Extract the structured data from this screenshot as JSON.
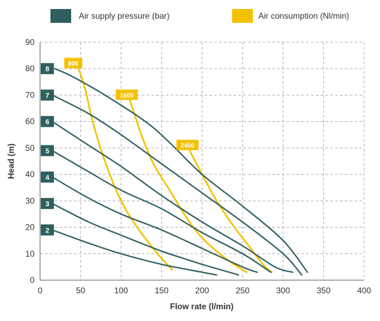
{
  "chart_data": {
    "type": "line",
    "title": "",
    "xlabel": "Flow rate (l/min)",
    "ylabel": "Head (m)",
    "xlim": [
      0,
      400
    ],
    "ylim": [
      0,
      90
    ],
    "x_ticks": [
      "0",
      "50",
      "100",
      "150",
      "200",
      "250",
      "300",
      "350",
      "400"
    ],
    "y_ticks": [
      "0",
      "10",
      "20",
      "30",
      "40",
      "50",
      "60",
      "70",
      "80",
      "90"
    ],
    "grid": true,
    "legend_position": "top",
    "legend": [
      {
        "label": "Air supply pressure (bar)",
        "color": "#2f5f5f"
      },
      {
        "label": "Air consumption (Nl/min)",
        "color": "#f2c200"
      }
    ],
    "pressure_series": [
      {
        "name": "8",
        "color": "#2f5f5f",
        "points": [
          [
            18,
            80
          ],
          [
            40,
            77
          ],
          [
            80,
            70
          ],
          [
            130,
            60
          ],
          [
            160,
            52
          ],
          [
            200,
            40
          ],
          [
            250,
            28
          ],
          [
            300,
            15
          ],
          [
            330,
            3
          ]
        ]
      },
      {
        "name": "7",
        "color": "#2f5f5f",
        "points": [
          [
            15,
            70
          ],
          [
            60,
            63
          ],
          [
            100,
            55
          ],
          [
            150,
            44
          ],
          [
            200,
            33
          ],
          [
            250,
            22
          ],
          [
            300,
            10
          ],
          [
            323,
            2
          ]
        ]
      },
      {
        "name": "6",
        "color": "#2f5f5f",
        "points": [
          [
            15,
            60
          ],
          [
            60,
            51
          ],
          [
            100,
            43
          ],
          [
            150,
            32
          ],
          [
            200,
            22
          ],
          [
            250,
            13
          ],
          [
            290,
            5
          ],
          [
            312,
            3
          ]
        ]
      },
      {
        "name": "5",
        "color": "#2f5f5f",
        "points": [
          [
            15,
            49
          ],
          [
            60,
            41
          ],
          [
            100,
            34
          ],
          [
            150,
            27
          ],
          [
            200,
            18
          ],
          [
            250,
            10
          ],
          [
            285,
            3
          ]
        ]
      },
      {
        "name": "4",
        "color": "#2f5f5f",
        "points": [
          [
            15,
            39
          ],
          [
            60,
            31
          ],
          [
            100,
            25
          ],
          [
            150,
            19
          ],
          [
            200,
            12
          ],
          [
            250,
            5
          ],
          [
            268,
            3
          ]
        ]
      },
      {
        "name": "3",
        "color": "#2f5f5f",
        "points": [
          [
            15,
            29
          ],
          [
            60,
            22
          ],
          [
            100,
            17
          ],
          [
            150,
            11
          ],
          [
            200,
            6
          ],
          [
            245,
            2
          ]
        ]
      },
      {
        "name": "2",
        "color": "#2f5f5f",
        "points": [
          [
            15,
            19
          ],
          [
            60,
            14
          ],
          [
            100,
            10
          ],
          [
            150,
            6
          ],
          [
            200,
            3
          ],
          [
            218,
            2
          ]
        ]
      }
    ],
    "consumption_series": [
      {
        "name": "800",
        "color": "#f2c200",
        "label_at": [
          41,
          82
        ],
        "points": [
          [
            45,
            82
          ],
          [
            55,
            73
          ],
          [
            65,
            60
          ],
          [
            80,
            45
          ],
          [
            100,
            30
          ],
          [
            120,
            20
          ],
          [
            145,
            10
          ],
          [
            163,
            4
          ]
        ]
      },
      {
        "name": "1600",
        "color": "#f2c200",
        "label_at": [
          107,
          70
        ],
        "points": [
          [
            110,
            69
          ],
          [
            125,
            55
          ],
          [
            140,
            44
          ],
          [
            160,
            34
          ],
          [
            180,
            24
          ],
          [
            200,
            16
          ],
          [
            230,
            8
          ],
          [
            255,
            3
          ]
        ]
      },
      {
        "name": "2400",
        "color": "#f2c200",
        "label_at": [
          182,
          51
        ],
        "points": [
          [
            183,
            50
          ],
          [
            200,
            40
          ],
          [
            220,
            29
          ],
          [
            240,
            20
          ],
          [
            260,
            12
          ],
          [
            275,
            6
          ],
          [
            286,
            3
          ]
        ]
      }
    ]
  }
}
